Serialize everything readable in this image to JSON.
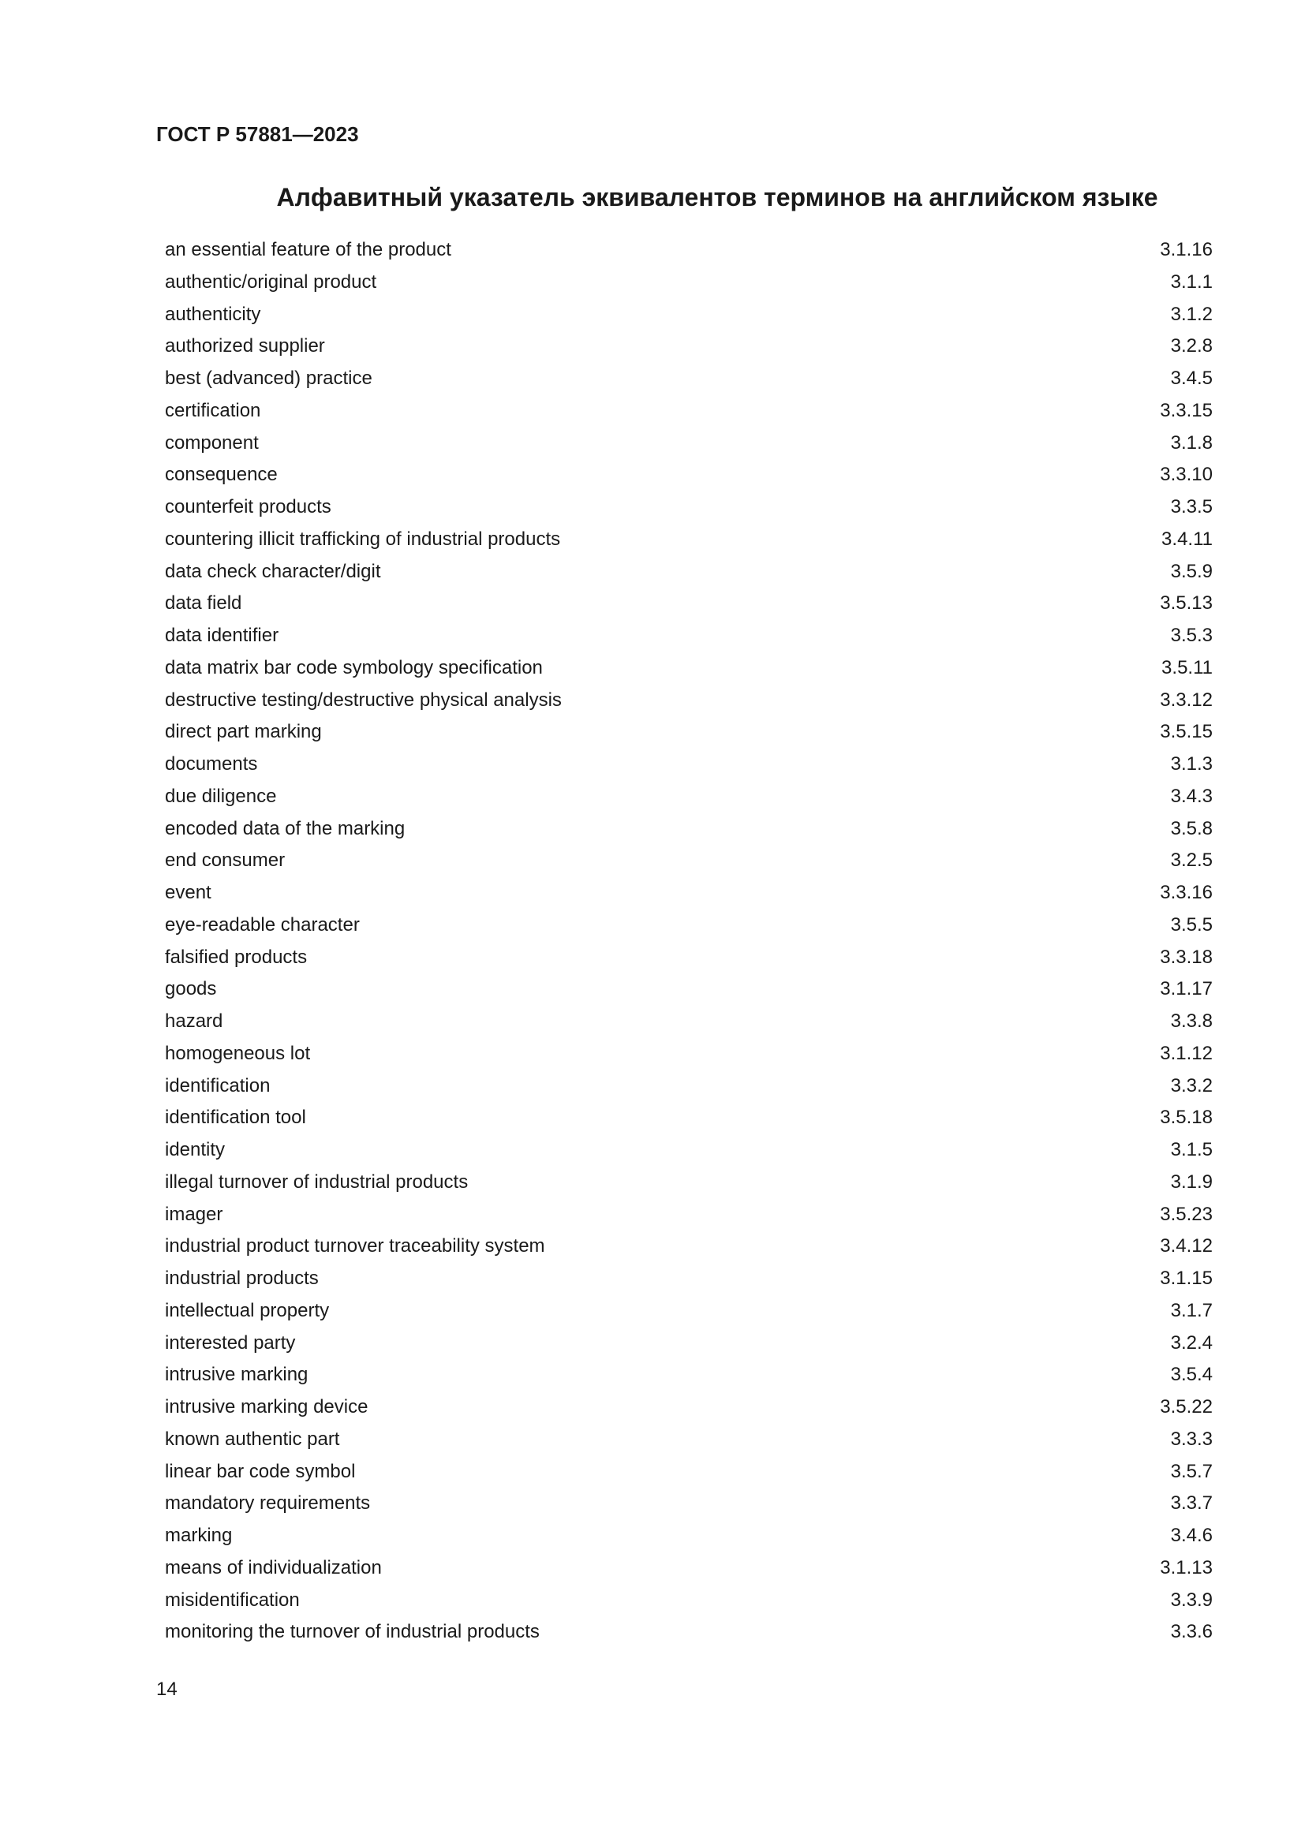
{
  "header": {
    "doc_id": "ГОСТ Р 57881—2023"
  },
  "title": "Алфавитный указатель эквивалентов терминов на английском языке",
  "entries": [
    {
      "term": "an essential feature of the product",
      "ref": "3.1.16"
    },
    {
      "term": "authentic/original product",
      "ref": "3.1.1"
    },
    {
      "term": "authenticity",
      "ref": "3.1.2"
    },
    {
      "term": "authorized supplier",
      "ref": "3.2.8"
    },
    {
      "term": "best (advanced) practice",
      "ref": "3.4.5"
    },
    {
      "term": "certification",
      "ref": "3.3.15"
    },
    {
      "term": "component",
      "ref": "3.1.8"
    },
    {
      "term": "consequence",
      "ref": "3.3.10"
    },
    {
      "term": "counterfeit products",
      "ref": "3.3.5"
    },
    {
      "term": "countering illicit trafficking of industrial products",
      "ref": "3.4.11"
    },
    {
      "term": "data check character/digit",
      "ref": "3.5.9"
    },
    {
      "term": "data field",
      "ref": "3.5.13"
    },
    {
      "term": "data identifier",
      "ref": "3.5.3"
    },
    {
      "term": "data matrix bar code symbology specification",
      "ref": "3.5.11"
    },
    {
      "term": "destructive testing/destructive physical analysis",
      "ref": "3.3.12"
    },
    {
      "term": "direct part marking",
      "ref": "3.5.15"
    },
    {
      "term": "documents",
      "ref": "3.1.3"
    },
    {
      "term": "due diligence",
      "ref": "3.4.3"
    },
    {
      "term": "encoded data of the marking",
      "ref": "3.5.8"
    },
    {
      "term": "end consumer",
      "ref": "3.2.5"
    },
    {
      "term": "event",
      "ref": "3.3.16"
    },
    {
      "term": "eye-readable character",
      "ref": "3.5.5"
    },
    {
      "term": "falsified products",
      "ref": "3.3.18"
    },
    {
      "term": "goods",
      "ref": "3.1.17"
    },
    {
      "term": "hazard",
      "ref": "3.3.8"
    },
    {
      "term": "homogeneous lot",
      "ref": "3.1.12"
    },
    {
      "term": "identification",
      "ref": "3.3.2"
    },
    {
      "term": "identification tool",
      "ref": "3.5.18"
    },
    {
      "term": "identity",
      "ref": "3.1.5"
    },
    {
      "term": "illegal turnover of industrial products",
      "ref": "3.1.9"
    },
    {
      "term": "imager",
      "ref": "3.5.23"
    },
    {
      "term": "industrial product turnover traceability system",
      "ref": "3.4.12"
    },
    {
      "term": "industrial products",
      "ref": "3.1.15"
    },
    {
      "term": "intellectual property",
      "ref": "3.1.7"
    },
    {
      "term": "interested party",
      "ref": "3.2.4"
    },
    {
      "term": "intrusive marking",
      "ref": "3.5.4"
    },
    {
      "term": "intrusive marking device",
      "ref": "3.5.22"
    },
    {
      "term": "known authentic part",
      "ref": "3.3.3"
    },
    {
      "term": "linear bar code symbol",
      "ref": "3.5.7"
    },
    {
      "term": "mandatory requirements",
      "ref": "3.3.7"
    },
    {
      "term": "marking",
      "ref": "3.4.6"
    },
    {
      "term": "means of individualization",
      "ref": "3.1.13"
    },
    {
      "term": "misidentification",
      "ref": "3.3.9"
    },
    {
      "term": "monitoring the turnover of industrial products",
      "ref": "3.3.6"
    }
  ],
  "page_number": "14"
}
